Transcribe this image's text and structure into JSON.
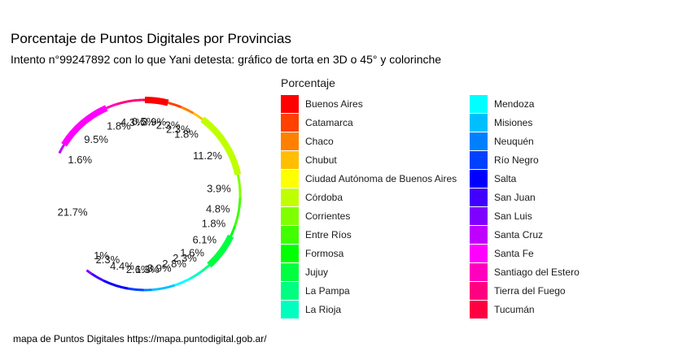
{
  "title": "Porcentaje de Puntos Digitales por Provincias",
  "subtitle": "Intento n°99247892 con lo que Yani detesta: gráfico de torta en 3D o 45° y colorinche",
  "caption": "mapa de Puntos Digitales https://mapa.puntodigital.gob.ar/",
  "chart_data": {
    "type": "pie",
    "legend_title": "Porcentaje",
    "legend_position": "right",
    "series_labels_note": "",
    "categories": [
      "Buenos Aires",
      "Catamarca",
      "Chaco",
      "Chubut",
      "Ciudad Autónoma de Buenos Aires",
      "Córdoba",
      "Corrientes",
      "Entre Ríos",
      "Formosa",
      "Jujuy",
      "La Pampa",
      "La Rioja",
      "Mendoza",
      "Misiones",
      "Neuquén",
      "Río Negro",
      "Salta",
      "San Juan",
      "San Luis",
      "Santa Cruz",
      "Santa Fe",
      "Santiago del Estero",
      "Tierra del Fuego",
      "Tucumán"
    ],
    "colors": [
      "#FF0000",
      "#FF4000",
      "#FF8000",
      "#FFBF00",
      "#FFFF00",
      "#BFFF00",
      "#80FF00",
      "#40FF00",
      "#00FF00",
      "#00FF40",
      "#00FF80",
      "#00FFBF",
      "#00FFFF",
      "#00BFFF",
      "#0080FF",
      "#0040FF",
      "#0000FF",
      "#4000FF",
      "#8000FF",
      "#BF00FF",
      "#FF00FF",
      "#FF00BF",
      "#FF0080",
      "#FF0040"
    ],
    "slices": [
      {
        "label": "3.9%",
        "value": 3.9,
        "color": "#FF0000"
      },
      {
        "label": "2.3%",
        "value": 2.3,
        "color": "#FF4000"
      },
      {
        "label": "2.3%",
        "value": 2.3,
        "color": "#FF8000"
      },
      {
        "label": "1.8%",
        "value": 1.8,
        "color": "#FFBF00"
      },
      {
        "label": "11.2%",
        "value": 11.2,
        "color": "#BFFF00"
      },
      {
        "label": "3.9%",
        "value": 3.9,
        "color": "#80FF00"
      },
      {
        "label": "4.8%",
        "value": 4.8,
        "color": "#40FF00"
      },
      {
        "label": "1.8%",
        "value": 1.8,
        "color": "#00FF00"
      },
      {
        "label": "6.1%",
        "value": 6.1,
        "color": "#00FF40"
      },
      {
        "label": "1.6%",
        "value": 1.6,
        "color": "#00FF80"
      },
      {
        "label": "2.3%",
        "value": 2.3,
        "color": "#00FFBF"
      },
      {
        "label": "2.8%",
        "value": 2.8,
        "color": "#00FFFF"
      },
      {
        "label": "3.9%",
        "value": 3.9,
        "color": "#00BFFF"
      },
      {
        "label": "1.3%",
        "value": 1.3,
        "color": "#0080FF"
      },
      {
        "label": "2.6%",
        "value": 2.6,
        "color": "#0040FF"
      },
      {
        "label": "4.4%",
        "value": 4.4,
        "color": "#0000FF"
      },
      {
        "label": "2.3%",
        "value": 2.3,
        "color": "#4000FF"
      },
      {
        "label": "1%",
        "value": 1.0,
        "color": "#8000FF"
      },
      {
        "label": "21.7%",
        "value": 21.7,
        "color": "#FFFFFF"
      },
      {
        "label": "1.6%",
        "value": 1.6,
        "color": "#BF00FF"
      },
      {
        "label": "9.5%",
        "value": 9.5,
        "color": "#FF00FF"
      },
      {
        "label": "1.8%",
        "value": 1.8,
        "color": "#FF00BF"
      },
      {
        "label": "4.3%",
        "value": 4.3,
        "color": "#FF0080"
      },
      {
        "label": "0.5%",
        "value": 0.5,
        "color": "#FF0040"
      }
    ]
  }
}
